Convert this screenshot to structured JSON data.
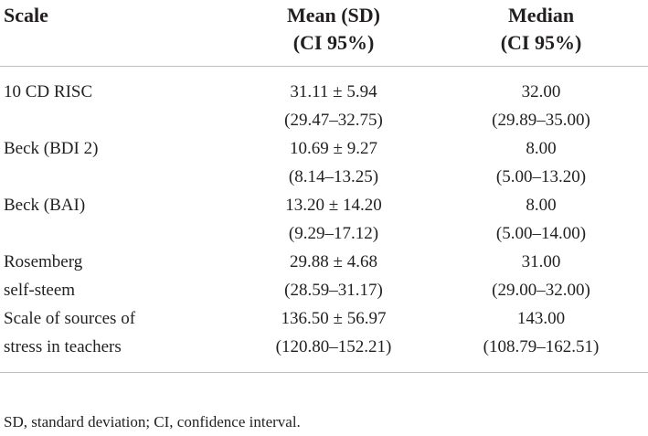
{
  "headers": {
    "scale": "Scale",
    "mean_line1": "Mean (SD)",
    "mean_line2": "(CI 95%)",
    "median_line1": "Median",
    "median_line2": "(CI 95%)"
  },
  "rows": [
    {
      "label_line1": "10 CD RISC",
      "label_line2": "",
      "mean": "31.11 ± 5.94",
      "mean_ci": "(29.47–32.75)",
      "median": "32.00",
      "median_ci": "(29.89–35.00)"
    },
    {
      "label_line1": "Beck (BDI 2)",
      "label_line2": "",
      "mean": "10.69 ± 9.27",
      "mean_ci": "(8.14–13.25)",
      "median": "8.00",
      "median_ci": "(5.00–13.20)"
    },
    {
      "label_line1": "Beck (BAI)",
      "label_line2": "",
      "mean": "13.20 ± 14.20",
      "mean_ci": "(9.29–17.12)",
      "median": "8.00",
      "median_ci": "(5.00–14.00)"
    },
    {
      "label_line1": "Rosemberg",
      "label_line2": "self-steem",
      "mean": "29.88 ± 4.68",
      "mean_ci": "(28.59–31.17)",
      "median": "31.00",
      "median_ci": "(29.00–32.00)"
    },
    {
      "label_line1": "Scale of sources of",
      "label_line2": "stress in teachers",
      "mean": "136.50 ± 56.97",
      "mean_ci": "(120.80–152.21)",
      "median": "143.00",
      "median_ci": "(108.79–162.51)"
    }
  ],
  "footnote": "SD, standard deviation; CI, confidence interval."
}
